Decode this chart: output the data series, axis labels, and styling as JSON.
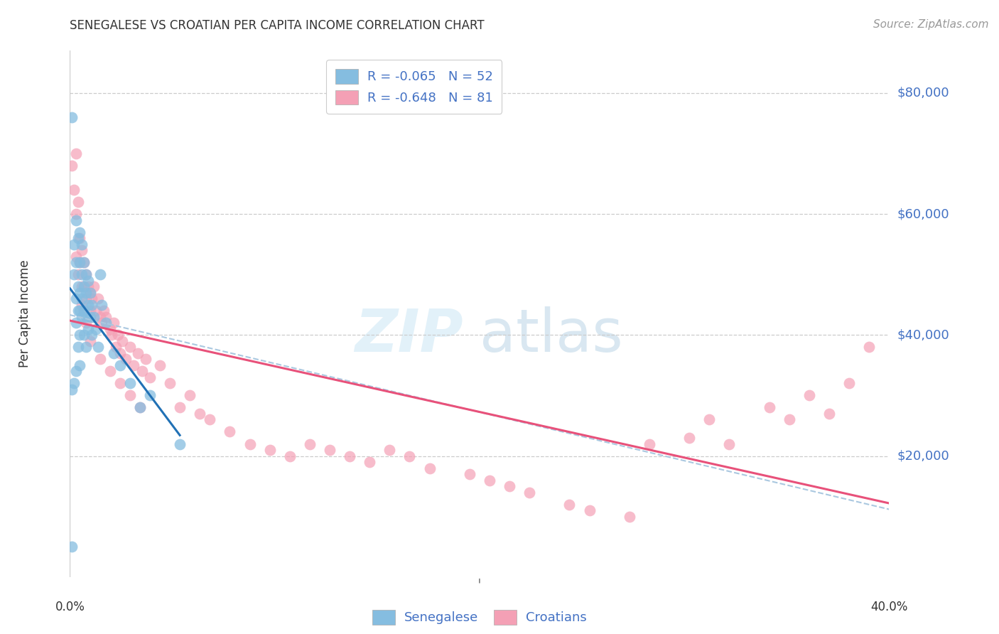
{
  "title": "SENEGALESE VS CROATIAN PER CAPITA INCOME CORRELATION CHART",
  "source": "Source: ZipAtlas.com",
  "ylabel": "Per Capita Income",
  "yticks": [
    20000,
    40000,
    60000,
    80000
  ],
  "ytick_labels": [
    "$20,000",
    "$40,000",
    "$60,000",
    "$80,000"
  ],
  "ylim": [
    0,
    87000
  ],
  "xlim": [
    0.0,
    0.41
  ],
  "legend_blue_label": "R = -0.065   N = 52",
  "legend_pink_label": "R = -0.648   N = 81",
  "blue_color": "#85bde0",
  "pink_color": "#f4a0b5",
  "blue_line_color": "#2171b5",
  "pink_line_color": "#e8517a",
  "dashed_line_color": "#aac8e0",
  "watermark_zip": "ZIP",
  "watermark_atlas": "atlas",
  "senegalese_label": "Senegalese",
  "croatians_label": "Croatians",
  "text_color": "#4472C4",
  "blue_scatter_x": [
    0.001,
    0.001,
    0.002,
    0.002,
    0.002,
    0.003,
    0.003,
    0.003,
    0.003,
    0.003,
    0.004,
    0.004,
    0.004,
    0.004,
    0.005,
    0.005,
    0.005,
    0.005,
    0.005,
    0.005,
    0.006,
    0.006,
    0.006,
    0.006,
    0.007,
    0.007,
    0.007,
    0.007,
    0.008,
    0.008,
    0.008,
    0.008,
    0.009,
    0.009,
    0.009,
    0.01,
    0.01,
    0.011,
    0.011,
    0.012,
    0.013,
    0.014,
    0.015,
    0.016,
    0.018,
    0.022,
    0.025,
    0.03,
    0.035,
    0.04,
    0.055,
    0.001
  ],
  "blue_scatter_y": [
    76000,
    31000,
    55000,
    50000,
    32000,
    59000,
    52000,
    46000,
    42000,
    34000,
    56000,
    48000,
    44000,
    38000,
    57000,
    52000,
    47000,
    44000,
    40000,
    35000,
    55000,
    50000,
    46000,
    43000,
    52000,
    48000,
    44000,
    40000,
    50000,
    47000,
    43000,
    38000,
    49000,
    45000,
    41000,
    47000,
    43000,
    45000,
    40000,
    43000,
    41000,
    38000,
    50000,
    45000,
    42000,
    37000,
    35000,
    32000,
    28000,
    30000,
    22000,
    5000
  ],
  "pink_scatter_x": [
    0.001,
    0.002,
    0.003,
    0.003,
    0.004,
    0.005,
    0.005,
    0.006,
    0.006,
    0.007,
    0.008,
    0.008,
    0.009,
    0.01,
    0.01,
    0.011,
    0.012,
    0.013,
    0.014,
    0.015,
    0.016,
    0.017,
    0.018,
    0.02,
    0.021,
    0.022,
    0.023,
    0.024,
    0.025,
    0.026,
    0.028,
    0.03,
    0.032,
    0.034,
    0.036,
    0.038,
    0.04,
    0.045,
    0.05,
    0.055,
    0.06,
    0.065,
    0.07,
    0.08,
    0.09,
    0.1,
    0.11,
    0.12,
    0.13,
    0.14,
    0.15,
    0.16,
    0.17,
    0.18,
    0.2,
    0.21,
    0.22,
    0.23,
    0.25,
    0.26,
    0.28,
    0.29,
    0.31,
    0.32,
    0.33,
    0.35,
    0.36,
    0.37,
    0.38,
    0.39,
    0.4,
    0.003,
    0.004,
    0.006,
    0.008,
    0.01,
    0.015,
    0.02,
    0.025,
    0.03,
    0.035
  ],
  "pink_scatter_y": [
    68000,
    64000,
    70000,
    60000,
    62000,
    56000,
    52000,
    54000,
    48000,
    52000,
    50000,
    46000,
    48000,
    47000,
    44000,
    46000,
    48000,
    44000,
    46000,
    43000,
    42000,
    44000,
    43000,
    41000,
    40000,
    42000,
    38000,
    40000,
    37000,
    39000,
    36000,
    38000,
    35000,
    37000,
    34000,
    36000,
    33000,
    35000,
    32000,
    28000,
    30000,
    27000,
    26000,
    24000,
    22000,
    21000,
    20000,
    22000,
    21000,
    20000,
    19000,
    21000,
    20000,
    18000,
    17000,
    16000,
    15000,
    14000,
    12000,
    11000,
    10000,
    22000,
    23000,
    26000,
    22000,
    28000,
    26000,
    30000,
    27000,
    32000,
    38000,
    53000,
    50000,
    45000,
    42000,
    39000,
    36000,
    34000,
    32000,
    30000,
    28000
  ]
}
